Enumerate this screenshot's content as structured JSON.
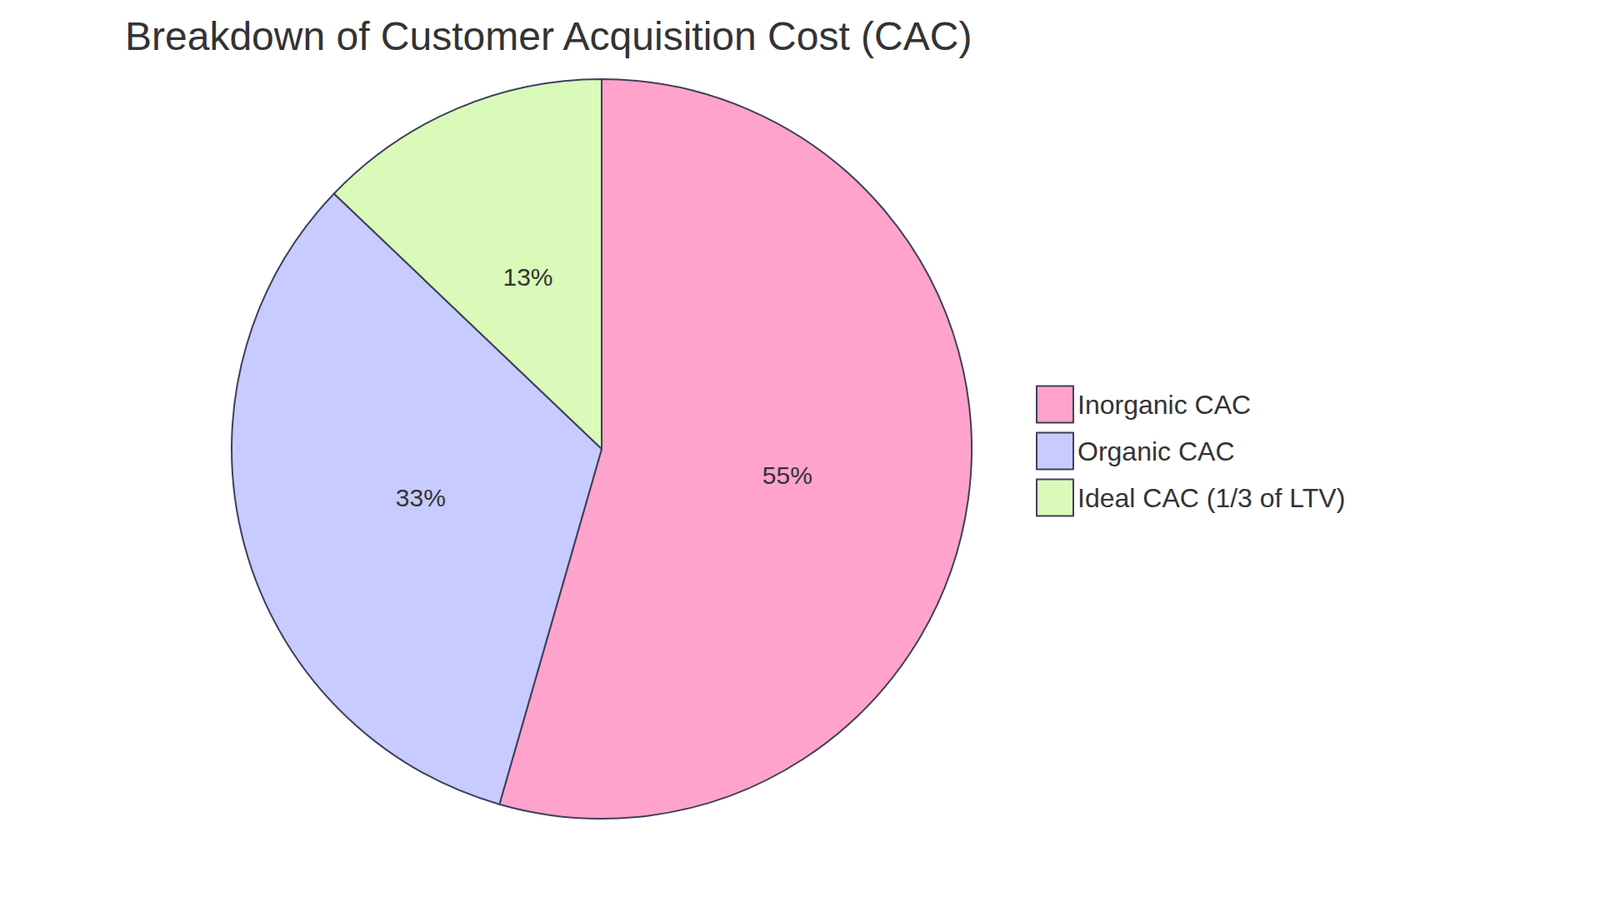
{
  "chart_data": {
    "type": "pie",
    "title": "Breakdown of Customer Acquisition Cost (CAC)",
    "categories": [
      "Inorganic CAC",
      "Organic CAC",
      "Ideal CAC (1/3 of LTV)"
    ],
    "values": [
      55,
      33,
      13
    ],
    "value_labels": [
      "55%",
      "33%",
      "13%"
    ],
    "colors": [
      "#ffa3cc",
      "#c7cbff",
      "#dafab9"
    ],
    "data_labels": true,
    "legend": "right"
  }
}
